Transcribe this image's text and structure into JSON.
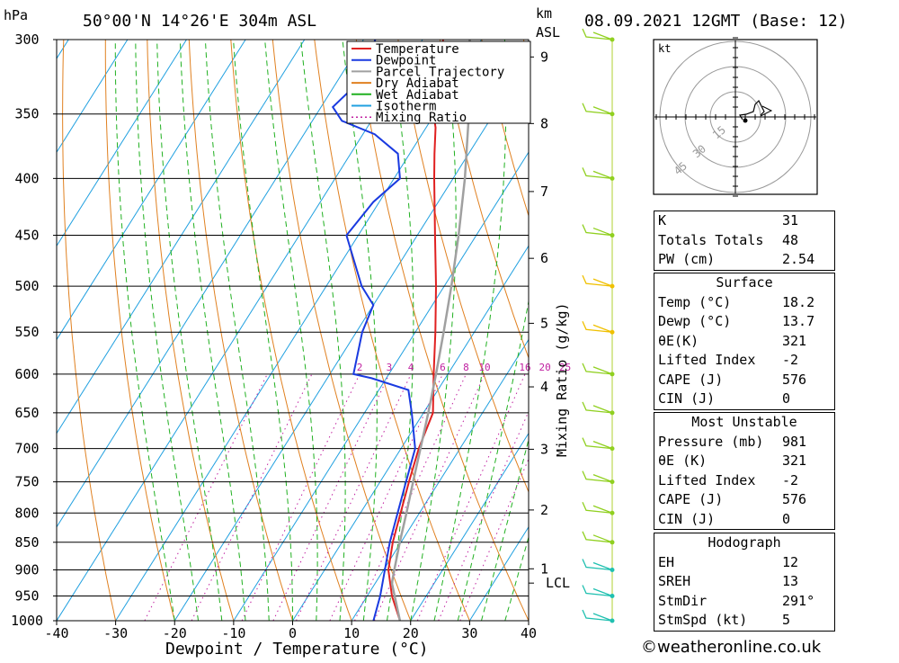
{
  "header": {
    "pressure_unit": "hPa",
    "location": "50°00'N  14°26'E  304m  ASL",
    "height_unit_1": "km",
    "height_unit_2": "ASL",
    "datetime": "08.09.2021  12GMT  (Base: 12)"
  },
  "footer": {
    "credit": "©weatheronline.co.uk"
  },
  "chart_data": {
    "type": "line",
    "subtype": "skew-t log-p sounding",
    "xlabel": "Dewpoint / Temperature (°C)",
    "ylabel": "hPa",
    "mixing_ratio_axis_label": "Mixing Ratio (g/kg)",
    "xlim": [
      -40,
      40
    ],
    "ylim": [
      1000,
      300
    ],
    "y_scale": "log",
    "x_ticks": [
      -40,
      -30,
      -20,
      -10,
      0,
      10,
      20,
      30,
      40
    ],
    "x_tick_labels": [
      "-40",
      "-30",
      "-20",
      "-10",
      "0",
      "10",
      "20",
      "30",
      "40"
    ],
    "pressure_levels": [
      300,
      350,
      400,
      450,
      500,
      550,
      600,
      650,
      700,
      750,
      800,
      850,
      900,
      950,
      1000
    ],
    "height_axis": {
      "ticks": [
        {
          "km": 9,
          "p": 311
        },
        {
          "km": 8,
          "p": 357
        },
        {
          "km": 7,
          "p": 411
        },
        {
          "km": 6,
          "p": 472
        },
        {
          "km": 5,
          "p": 540
        },
        {
          "km": 4,
          "p": 616
        },
        {
          "km": 3,
          "p": 701
        },
        {
          "km": 2,
          "p": 795
        },
        {
          "km": 1,
          "p": 898
        }
      ],
      "lcl_label": "LCL",
      "lcl_pressure": 925
    },
    "mixing_ratio_labels": [
      "2",
      "3",
      "4",
      "6",
      "8",
      "10",
      "16",
      "20",
      "25"
    ],
    "legend": {
      "placement": "top-center",
      "entries": [
        {
          "name": "Temperature",
          "color": "#e02020",
          "style": "solid"
        },
        {
          "name": "Dewpoint",
          "color": "#1a3ae0",
          "style": "solid"
        },
        {
          "name": "Parcel Trajectory",
          "color": "#a0a0a0",
          "style": "solid"
        },
        {
          "name": "Dry Adiabat",
          "color": "#e08020",
          "style": "solid"
        },
        {
          "name": "Wet Adiabat",
          "color": "#20b020",
          "style": "solid"
        },
        {
          "name": "Isotherm",
          "color": "#20a0e0",
          "style": "solid"
        },
        {
          "name": "Mixing Ratio",
          "color": "#c020a0",
          "style": "dotted"
        }
      ]
    },
    "series": [
      {
        "name": "Temperature",
        "points": [
          [
            1000,
            18.2
          ],
          [
            950,
            14.2
          ],
          [
            900,
            10.8
          ],
          [
            850,
            8.6
          ],
          [
            800,
            6.8
          ],
          [
            750,
            4.9
          ],
          [
            700,
            3.0
          ],
          [
            650,
            1.6
          ],
          [
            600,
            -2.4
          ],
          [
            550,
            -6.6
          ],
          [
            500,
            -11.4
          ],
          [
            450,
            -17.0
          ],
          [
            400,
            -23.2
          ],
          [
            380,
            -25.8
          ],
          [
            360,
            -28.4
          ],
          [
            350,
            -30.2
          ],
          [
            330,
            -32.6
          ],
          [
            300,
            -36.5
          ]
        ]
      },
      {
        "name": "Dewpoint",
        "points": [
          [
            1000,
            13.7
          ],
          [
            950,
            12.2
          ],
          [
            900,
            10.2
          ],
          [
            850,
            8.1
          ],
          [
            800,
            6.3
          ],
          [
            750,
            4.4
          ],
          [
            700,
            2.4
          ],
          [
            650,
            -2.0
          ],
          [
            620,
            -5.0
          ],
          [
            605,
            -12.5
          ],
          [
            600,
            -16.0
          ],
          [
            550,
            -19.0
          ],
          [
            520,
            -20.0
          ],
          [
            500,
            -24.0
          ],
          [
            450,
            -32.0
          ],
          [
            420,
            -31.0
          ],
          [
            400,
            -29.0
          ],
          [
            380,
            -32.0
          ],
          [
            365,
            -38.0
          ],
          [
            355,
            -45.0
          ],
          [
            345,
            -48.0
          ],
          [
            330,
            -46.5
          ],
          [
            320,
            -48.0
          ],
          [
            310,
            -47.5
          ],
          [
            300,
            -48.0
          ]
        ]
      },
      {
        "name": "Parcel Trajectory",
        "points": [
          [
            1000,
            18.2
          ],
          [
            925,
            12.8
          ],
          [
            900,
            11.8
          ],
          [
            850,
            9.8
          ],
          [
            800,
            7.8
          ],
          [
            750,
            5.6
          ],
          [
            700,
            3.3
          ],
          [
            650,
            0.8
          ],
          [
            600,
            -2.0
          ],
          [
            550,
            -5.2
          ],
          [
            500,
            -8.8
          ],
          [
            450,
            -13.0
          ],
          [
            400,
            -18.0
          ],
          [
            350,
            -24.2
          ],
          [
            300,
            -32.0
          ]
        ]
      }
    ],
    "hodograph": {
      "unit_label": "kt",
      "ring_labels": [
        "15",
        "30",
        "45"
      ]
    },
    "wind_barbs": {
      "note": "wind barbs drawn at right-side pressure levels",
      "levels": [
        1000,
        950,
        900,
        850,
        800,
        750,
        700,
        650,
        600,
        550,
        500,
        450,
        400,
        350,
        300
      ]
    }
  },
  "indices": {
    "main": [
      {
        "label": "K",
        "value": "31"
      },
      {
        "label": "Totals Totals",
        "value": "48"
      },
      {
        "label": "PW (cm)",
        "value": "2.54"
      }
    ],
    "surface": {
      "title": "Surface",
      "rows": [
        {
          "label": "Temp (°C)",
          "value": "18.2"
        },
        {
          "label": "Dewp (°C)",
          "value": "13.7"
        },
        {
          "label": "θE(K)",
          "value": "321"
        },
        {
          "label": "Lifted Index",
          "value": "-2"
        },
        {
          "label": "CAPE (J)",
          "value": "576"
        },
        {
          "label": "CIN (J)",
          "value": "0"
        }
      ]
    },
    "most_unstable": {
      "title": "Most Unstable",
      "rows": [
        {
          "label": "Pressure (mb)",
          "value": "981"
        },
        {
          "label": "θE (K)",
          "value": "321"
        },
        {
          "label": "Lifted Index",
          "value": "-2"
        },
        {
          "label": "CAPE (J)",
          "value": "576"
        },
        {
          "label": "CIN (J)",
          "value": "0"
        }
      ]
    },
    "hodograph_table": {
      "title": "Hodograph",
      "rows": [
        {
          "label": "EH",
          "value": "12"
        },
        {
          "label": "SREH",
          "value": "13"
        },
        {
          "label": "StmDir",
          "value": "291°"
        },
        {
          "label": "StmSpd (kt)",
          "value": "5"
        }
      ]
    }
  }
}
